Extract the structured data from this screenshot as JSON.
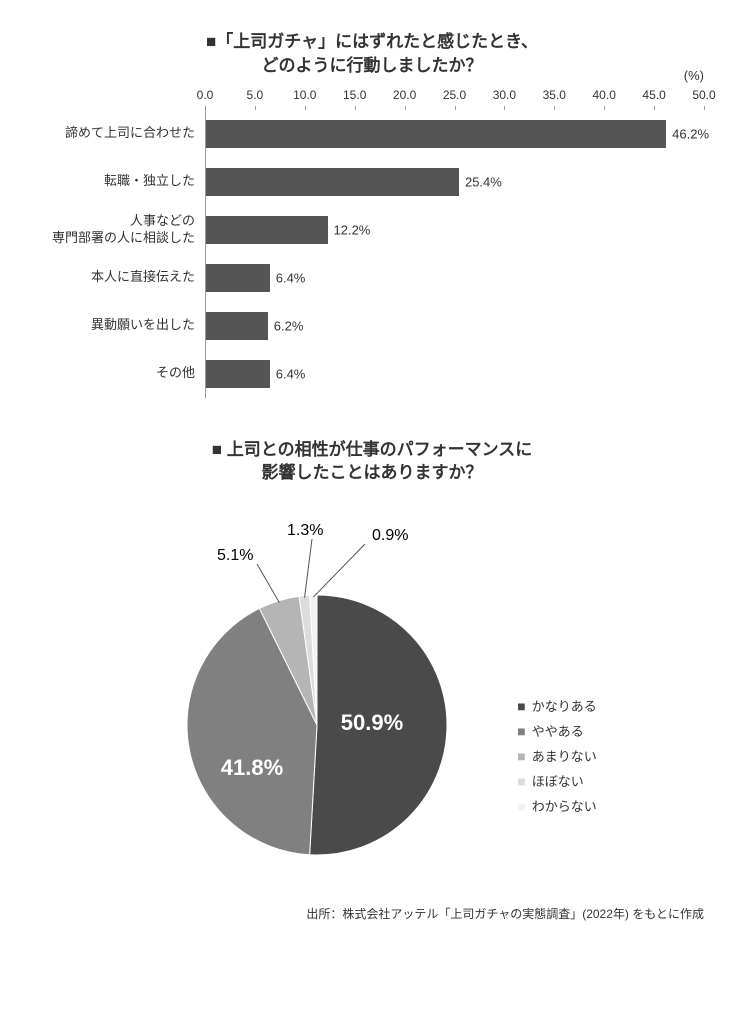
{
  "barChart": {
    "title_line1": "■「上司ガチャ」にはずれたと感じたとき、",
    "title_line2": "どのように行動しましたか？",
    "unit": "(%)",
    "xmax": 50,
    "xtick_step": 5,
    "xtick_labels": [
      "0.0",
      "5.0",
      "10.0",
      "15.0",
      "20.0",
      "25.0",
      "30.0",
      "35.0",
      "40.0",
      "45.0",
      "50.0"
    ],
    "bar_color": "#555555",
    "categories": [
      {
        "label": "諦めて上司に合わせた",
        "value": 46.2,
        "value_label": "46.2%"
      },
      {
        "label": "転職・独立した",
        "value": 25.4,
        "value_label": "25.4%"
      },
      {
        "label": "人事などの\n専門部署の人に相談した",
        "value": 12.2,
        "value_label": "12.2%"
      },
      {
        "label": "本人に直接伝えた",
        "value": 6.4,
        "value_label": "6.4%"
      },
      {
        "label": "異動願いを出した",
        "value": 6.2,
        "value_label": "6.2%"
      },
      {
        "label": "その他",
        "value": 6.4,
        "value_label": "6.4%"
      }
    ]
  },
  "pieChart": {
    "title_line1": "■ 上司との相性が仕事のパフォーマンスに",
    "title_line2": "影響したことはありますか？",
    "slices": [
      {
        "label": "かなりある",
        "value": 50.9,
        "value_label": "50.9%",
        "color": "#4a4a4a"
      },
      {
        "label": "ややある",
        "value": 41.8,
        "value_label": "41.8%",
        "color": "#808080"
      },
      {
        "label": "あまりない",
        "value": 5.1,
        "value_label": "5.1%",
        "color": "#b5b5b5"
      },
      {
        "label": "ほぼない",
        "value": 1.3,
        "value_label": "1.3%",
        "color": "#dcdcdc"
      },
      {
        "label": "わからない",
        "value": 0.9,
        "value_label": "0.9%",
        "color": "#f2f2f2"
      }
    ],
    "legend_marker": "■"
  },
  "source": "出所：株式会社アッテル「上司ガチャの実態調査」(2022年) をもとに作成"
}
